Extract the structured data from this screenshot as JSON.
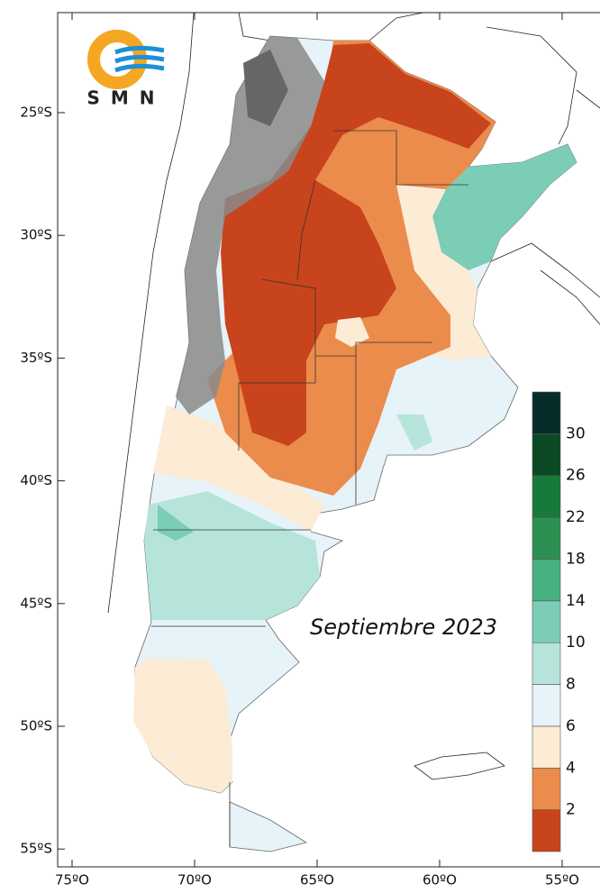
{
  "logo": {
    "text": "SMN"
  },
  "caption": "Septiembre 2023",
  "latitude_labels": [
    "25ºS",
    "30ºS",
    "35ºS",
    "40ºS",
    "45ºS",
    "50ºS",
    "55ºS"
  ],
  "longitude_labels": [
    "75ºO",
    "70ºO",
    "65ºO",
    "60ºO",
    "55ºO"
  ],
  "legend": {
    "labels": [
      2,
      4,
      6,
      8,
      10,
      14,
      18,
      22,
      26,
      30
    ],
    "colors": [
      "#c8441c",
      "#ec8c4c",
      "#fcecd6",
      "#e6f3f8",
      "#b6e4da",
      "#7ccdb6",
      "#46b07e",
      "#2c9052",
      "#187a3a",
      "#0b4a24",
      "#062c2a"
    ]
  }
}
